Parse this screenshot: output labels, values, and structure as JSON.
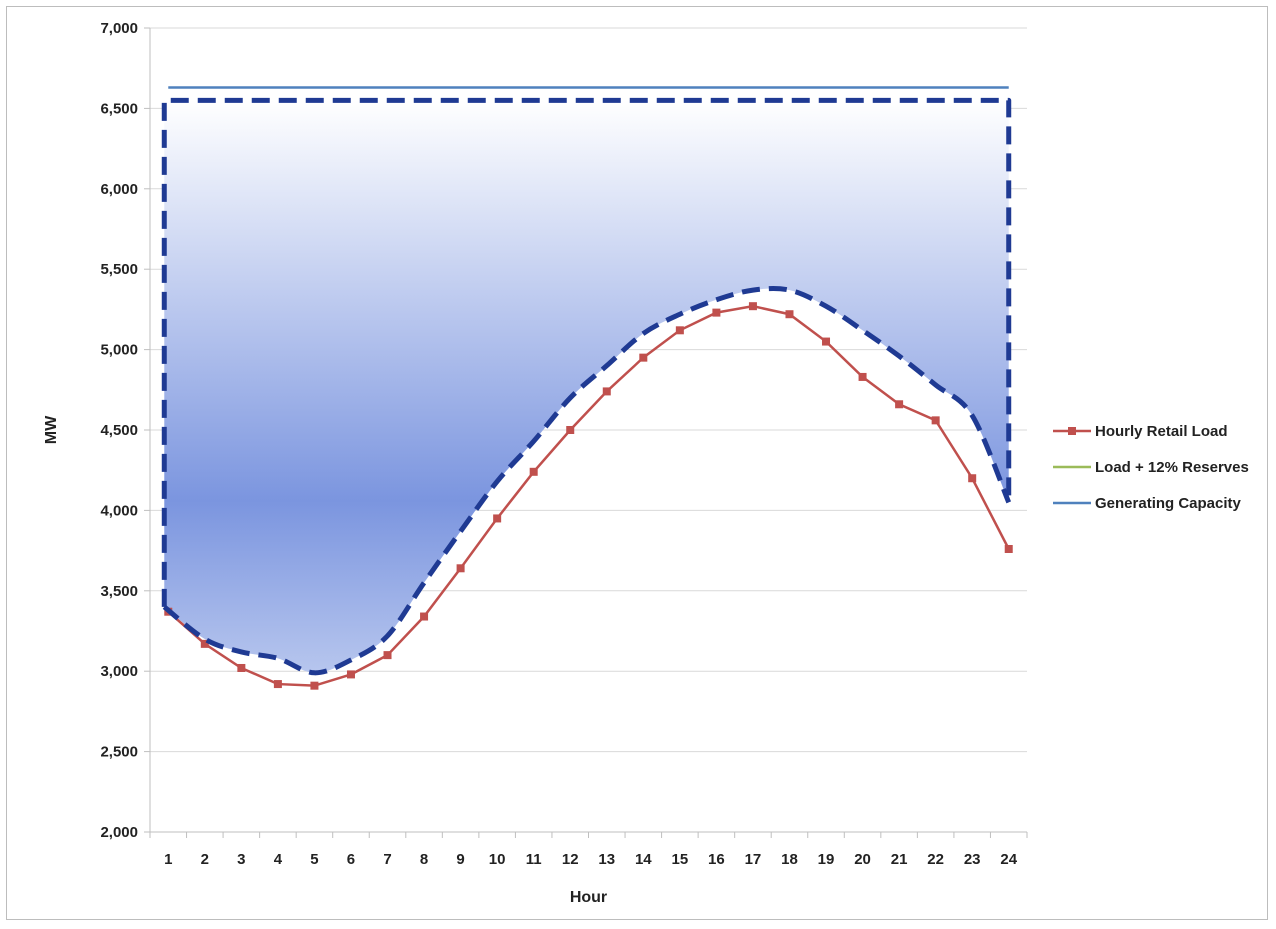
{
  "chart_data": {
    "type": "line",
    "title": "",
    "xlabel": "Hour",
    "ylabel": "MW",
    "ylim": [
      2000,
      7000
    ],
    "y_ticks": [
      2000,
      2500,
      3000,
      3500,
      4000,
      4500,
      5000,
      5500,
      6000,
      6500,
      7000
    ],
    "y_tick_labels": [
      "2,000",
      "2,500",
      "3,000",
      "3,500",
      "4,000",
      "4,500",
      "5,000",
      "5,500",
      "6,000",
      "6,500",
      "7,000"
    ],
    "categories": [
      "1",
      "2",
      "3",
      "4",
      "5",
      "6",
      "7",
      "8",
      "9",
      "10",
      "11",
      "12",
      "13",
      "14",
      "15",
      "16",
      "17",
      "18",
      "19",
      "20",
      "21",
      "22",
      "23",
      "24"
    ],
    "grid": "horizontal",
    "legend_position": "right",
    "series": [
      {
        "name": "Hourly Retail Load",
        "color": "#c0504d",
        "marker": "square",
        "values": [
          3370,
          3170,
          3020,
          2920,
          2910,
          2980,
          3100,
          3340,
          3640,
          3950,
          4240,
          4500,
          4740,
          4950,
          5120,
          5230,
          5270,
          5220,
          5050,
          4830,
          4660,
          4560,
          4200,
          3760
        ]
      },
      {
        "name": "Load + 12% Reserves",
        "color": "#9bbb59",
        "values": [
          3400,
          3200,
          3120,
          3080,
          2990,
          3070,
          3220,
          3550,
          3870,
          4180,
          4430,
          4700,
          4900,
          5100,
          5220,
          5310,
          5370,
          5370,
          5270,
          5120,
          4960,
          4780,
          4590,
          4050
        ]
      },
      {
        "name": "Generating Capacity",
        "color": "#4f81bd",
        "values": [
          6630,
          6630,
          6630,
          6630,
          6630,
          6630,
          6630,
          6630,
          6630,
          6630,
          6630,
          6630,
          6630,
          6630,
          6630,
          6630,
          6630,
          6630,
          6630,
          6630,
          6630,
          6630,
          6630,
          6630
        ]
      }
    ],
    "annotations": [
      {
        "kind": "dashed-outline",
        "color": "#1f3a93",
        "top_value": 6550
      }
    ],
    "colors": {
      "grid": "#d9d9d9",
      "axis": "#bfbfbf",
      "fill_top": "#ffffff",
      "fill_bottom": "#7b95df"
    }
  }
}
